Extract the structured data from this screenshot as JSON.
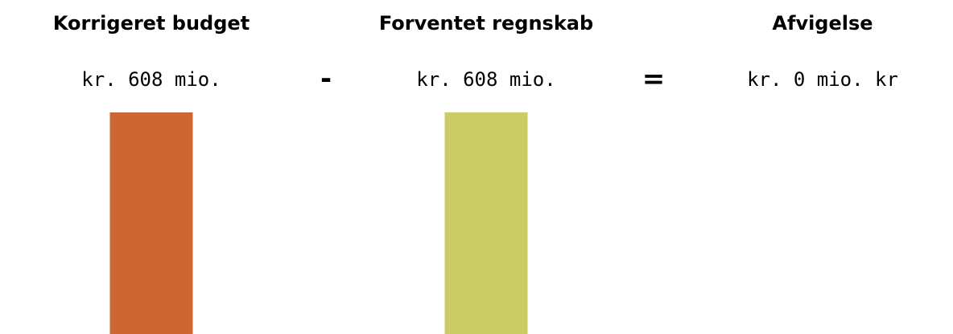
{
  "chart_data": {
    "type": "bar",
    "categories": [
      "Korrigeret budget",
      "Forventet regnskab",
      "Afvigelse"
    ],
    "values": [
      608,
      608,
      0
    ],
    "value_labels": [
      "kr. 608 mio.",
      "kr. 608 mio.",
      "kr. 0 mio. kr"
    ],
    "operators": [
      "-",
      "="
    ],
    "colors": [
      "#cc6633",
      "#cccc66"
    ]
  }
}
